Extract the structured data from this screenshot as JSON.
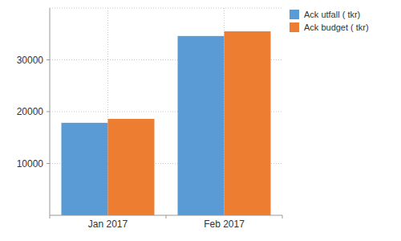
{
  "chart_data": {
    "type": "bar",
    "categories": [
      "Jan 2017",
      "Feb 2017"
    ],
    "series": [
      {
        "name": "Ack utfall ( tkr)",
        "color": "#5b9bd5",
        "values": [
          17850,
          34600
        ]
      },
      {
        "name": "Ack budget ( tkr)",
        "color": "#ed7d31",
        "values": [
          18600,
          35500
        ]
      }
    ],
    "ylim": [
      0,
      40000
    ],
    "yticks": [
      10000,
      20000,
      30000
    ],
    "grid": true,
    "legend": "top-right"
  }
}
